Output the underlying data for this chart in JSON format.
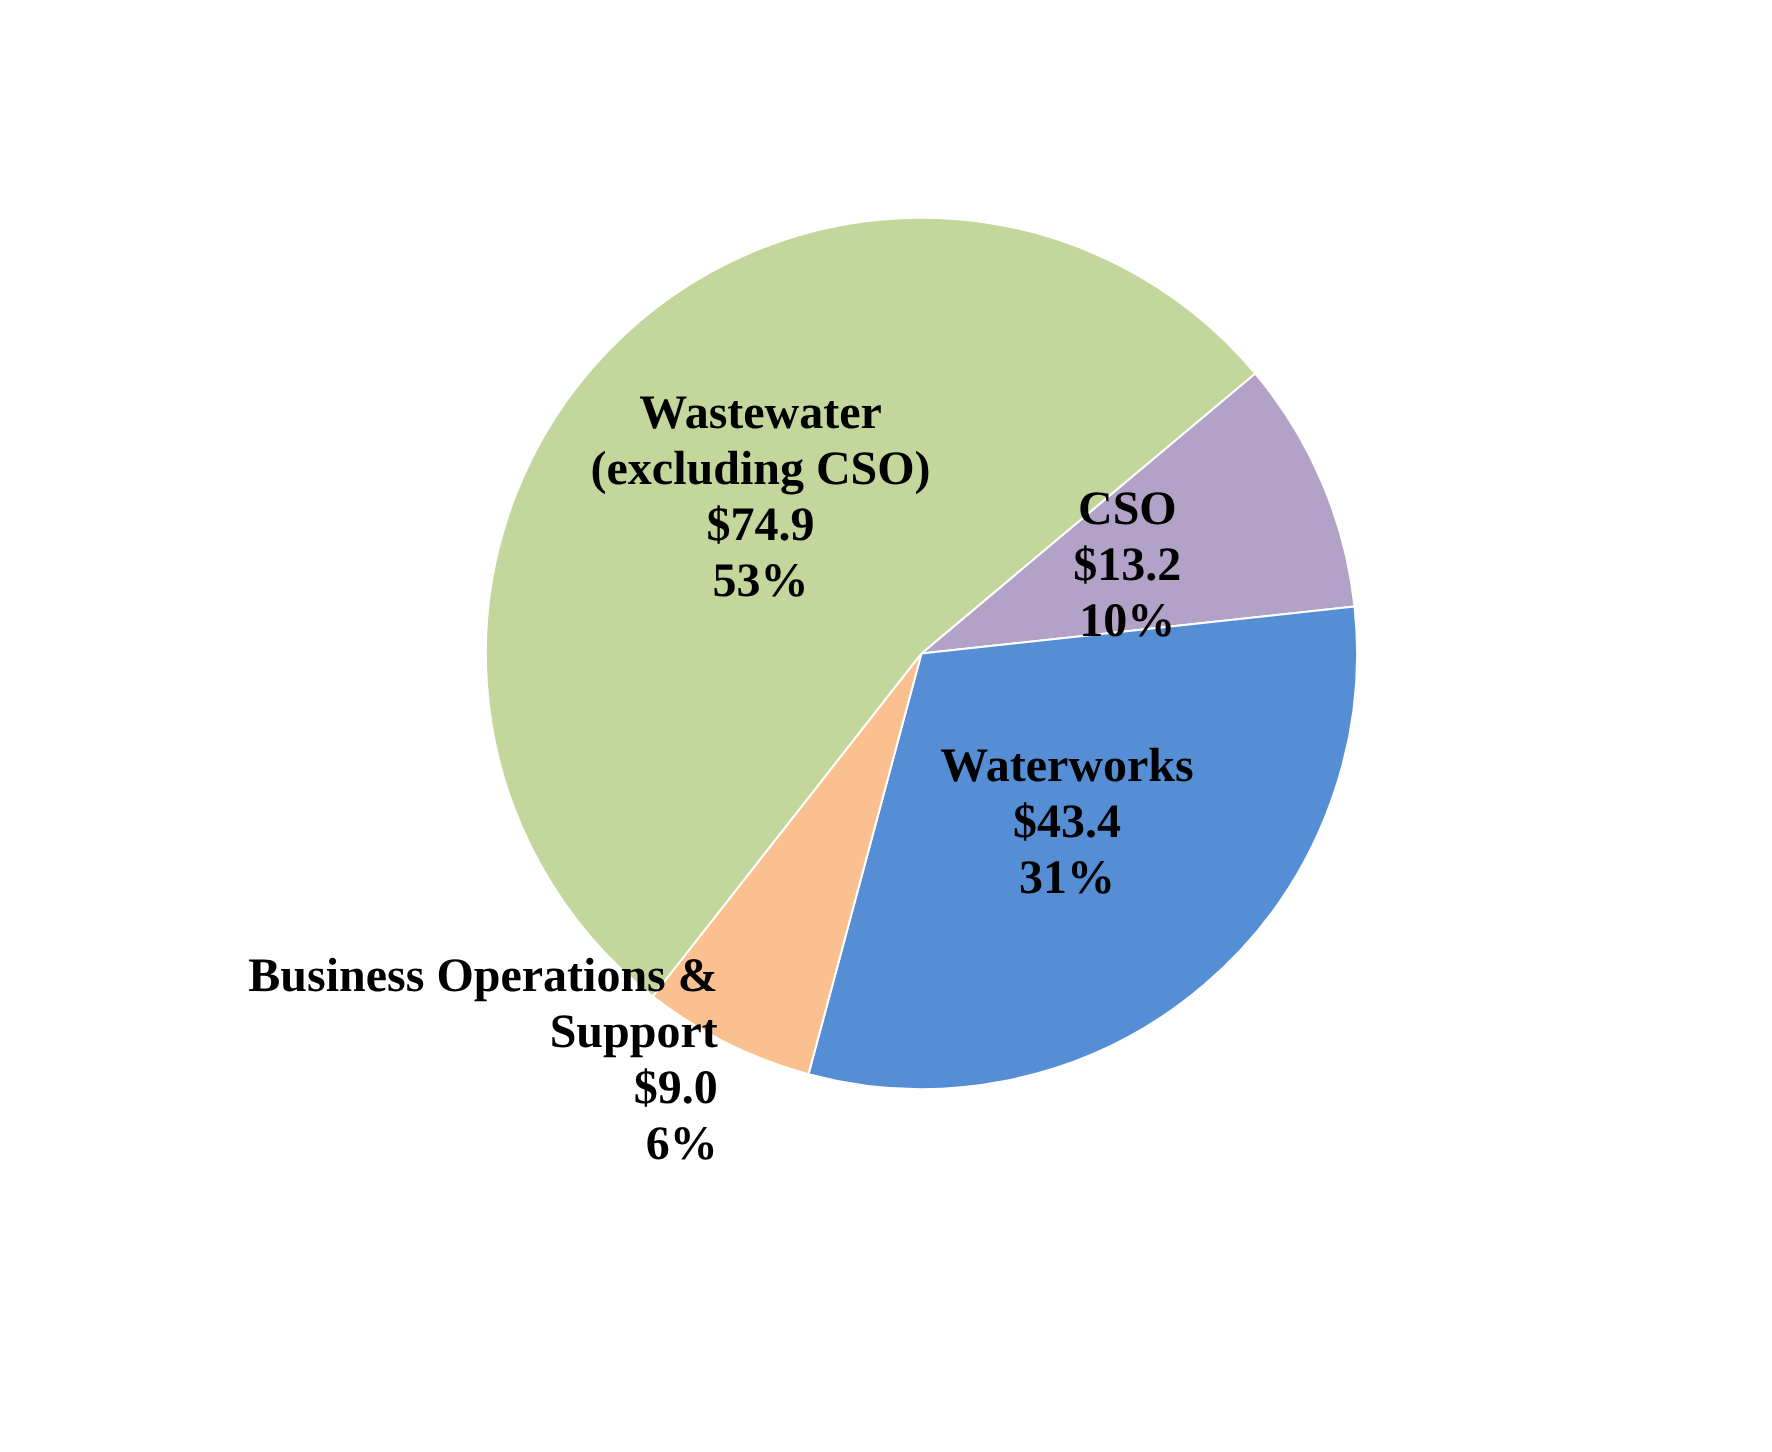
{
  "chart_data": {
    "type": "pie",
    "categories": [
      "CSO",
      "Waterworks",
      "Business Operations &\nSupport",
      "Wastewater\n(excluding CSO)"
    ],
    "values": [
      13.2,
      43.4,
      9.0,
      74.9
    ],
    "colors": [
      "#b3a2c7",
      "#558ed5",
      "#fac090",
      "#c3d69b"
    ],
    "value_labels": [
      "$13.2\n10%",
      "$43.4\n31%",
      "$9.0\n6%",
      "$74.9\n53%"
    ],
    "legend": false
  }
}
